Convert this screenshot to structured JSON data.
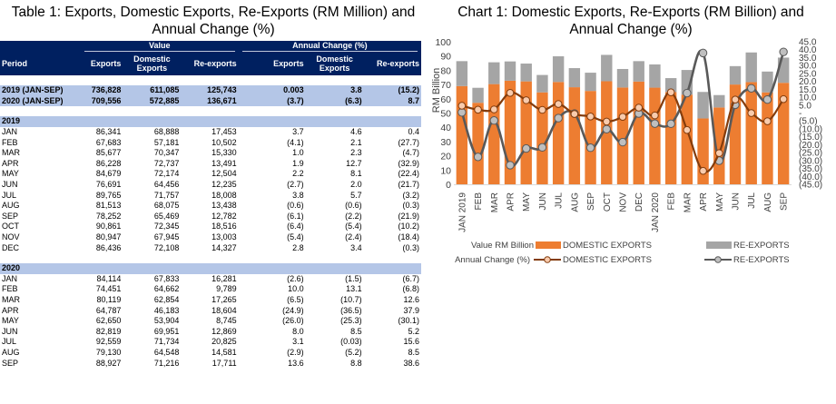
{
  "table": {
    "title": "Table 1: Exports, Domestic Exports, Re-Exports (RM Million)  and Annual  Change (%)",
    "group_headers": [
      "Value",
      "Annual Change (%)"
    ],
    "columns": [
      "Period",
      "Exports",
      "Domestic Exports",
      "Re-exports",
      "Exports",
      "Domestic Exports",
      "Re-exports"
    ],
    "summary_rows": [
      {
        "period": "2019 (JAN-SEP)",
        "exports": "736,828",
        "domestic": "611,085",
        "reexports": "125,743",
        "chg_exports": "0.003",
        "chg_domestic": "3.8",
        "chg_reexports": "(15.2)"
      },
      {
        "period": "2020 (JAN-SEP)",
        "exports": "709,556",
        "domestic": "572,885",
        "reexports": "136,671",
        "chg_exports": "(3.7)",
        "chg_domestic": "(6.3)",
        "chg_reexports": "8.7"
      }
    ],
    "years": [
      {
        "year": "2019",
        "rows": [
          {
            "period": "JAN",
            "exports": "86,341",
            "domestic": "68,888",
            "reexports": "17,453",
            "chg_exports": "3.7",
            "chg_domestic": "4.6",
            "chg_reexports": "0.4"
          },
          {
            "period": "FEB",
            "exports": "67,683",
            "domestic": "57,181",
            "reexports": "10,502",
            "chg_exports": "(4.1)",
            "chg_domestic": "2.1",
            "chg_reexports": "(27.7)"
          },
          {
            "period": "MAR",
            "exports": "85,677",
            "domestic": "70,347",
            "reexports": "15,330",
            "chg_exports": "1.0",
            "chg_domestic": "2.3",
            "chg_reexports": "(4.7)"
          },
          {
            "period": "APR",
            "exports": "86,228",
            "domestic": "72,737",
            "reexports": "13,491",
            "chg_exports": "1.9",
            "chg_domestic": "12.7",
            "chg_reexports": "(32.9)"
          },
          {
            "period": "MAY",
            "exports": "84,679",
            "domestic": "72,174",
            "reexports": "12,504",
            "chg_exports": "2.2",
            "chg_domestic": "8.1",
            "chg_reexports": "(22.4)"
          },
          {
            "period": "JUN",
            "exports": "76,691",
            "domestic": "64,456",
            "reexports": "12,235",
            "chg_exports": "(2.7)",
            "chg_domestic": "2.0",
            "chg_reexports": "(21.7)"
          },
          {
            "period": "JUL",
            "exports": "89,765",
            "domestic": "71,757",
            "reexports": "18,008",
            "chg_exports": "3.8",
            "chg_domestic": "5.7",
            "chg_reexports": "(3.2)"
          },
          {
            "period": "AUG",
            "exports": "81,513",
            "domestic": "68,075",
            "reexports": "13,438",
            "chg_exports": "(0.6)",
            "chg_domestic": "(0.6)",
            "chg_reexports": "(0.3)"
          },
          {
            "period": "SEP",
            "exports": "78,252",
            "domestic": "65,469",
            "reexports": "12,782",
            "chg_exports": "(6.1)",
            "chg_domestic": "(2.2)",
            "chg_reexports": "(21.9)"
          },
          {
            "period": "OCT",
            "exports": "90,861",
            "domestic": "72,345",
            "reexports": "18,516",
            "chg_exports": "(6.4)",
            "chg_domestic": "(5.4)",
            "chg_reexports": "(10.2)"
          },
          {
            "period": "NOV",
            "exports": "80,947",
            "domestic": "67,945",
            "reexports": "13,003",
            "chg_exports": "(5.4)",
            "chg_domestic": "(2.4)",
            "chg_reexports": "(18.4)"
          },
          {
            "period": "DEC",
            "exports": "86,436",
            "domestic": "72,108",
            "reexports": "14,327",
            "chg_exports": "2.8",
            "chg_domestic": "3.4",
            "chg_reexports": "(0.3)"
          }
        ]
      },
      {
        "year": "2020",
        "rows": [
          {
            "period": "JAN",
            "exports": "84,114",
            "domestic": "67,833",
            "reexports": "16,281",
            "chg_exports": "(2.6)",
            "chg_domestic": "(1.5)",
            "chg_reexports": "(6.7)"
          },
          {
            "period": "FEB",
            "exports": "74,451",
            "domestic": "64,662",
            "reexports": "9,789",
            "chg_exports": "10.0",
            "chg_domestic": "13.1",
            "chg_reexports": "(6.8)"
          },
          {
            "period": "MAR",
            "exports": "80,119",
            "domestic": "62,854",
            "reexports": "17,265",
            "chg_exports": "(6.5)",
            "chg_domestic": "(10.7)",
            "chg_reexports": "12.6"
          },
          {
            "period": "APR",
            "exports": "64,787",
            "domestic": "46,183",
            "reexports": "18,604",
            "chg_exports": "(24.9)",
            "chg_domestic": "(36.5)",
            "chg_reexports": "37.9"
          },
          {
            "period": "MAY",
            "exports": "62,650",
            "domestic": "53,904",
            "reexports": "8,745",
            "chg_exports": "(26.0)",
            "chg_domestic": "(25.3)",
            "chg_reexports": "(30.1)"
          },
          {
            "period": "JUN",
            "exports": "82,819",
            "domestic": "69,951",
            "reexports": "12,869",
            "chg_exports": "8.0",
            "chg_domestic": "8.5",
            "chg_reexports": "5.2"
          },
          {
            "period": "JUL",
            "exports": "92,559",
            "domestic": "71,734",
            "reexports": "20,825",
            "chg_exports": "3.1",
            "chg_domestic": "(0.03)",
            "chg_reexports": "15.6"
          },
          {
            "period": "AUG",
            "exports": "79,130",
            "domestic": "64,548",
            "reexports": "14,581",
            "chg_exports": "(2.9)",
            "chg_domestic": "(5.2)",
            "chg_reexports": "8.5"
          },
          {
            "period": "SEP",
            "exports": "88,927",
            "domestic": "71,216",
            "reexports": "17,711",
            "chg_exports": "13.6",
            "chg_domestic": "8.8",
            "chg_reexports": "38.6"
          }
        ]
      }
    ]
  },
  "chart_data": {
    "type": "bar",
    "title": "Chart 1: Domestic Exports, Re-Exports (RM Billion) and Annual  Change (%)",
    "ylabel": "RM Billion",
    "ylim": [
      0,
      100
    ],
    "yticks": [
      "0",
      "10",
      "20",
      "30",
      "40",
      "50",
      "60",
      "70",
      "80",
      "90",
      "100"
    ],
    "y2lim": [
      -45,
      45
    ],
    "y2ticks": [
      "45.0",
      "40.0",
      "35.0",
      "30.0",
      "25.0",
      "20.0",
      "15.0",
      "10.0",
      "5.0",
      "-",
      "(5.0)",
      "(10.0)",
      "(15.0)",
      "(20.0)",
      "(25.0)",
      "(30.0)",
      "(35.0)",
      "(40.0)",
      "(45.0)"
    ],
    "categories": [
      "JAN 2019",
      "FEB",
      "MAR",
      "APR",
      "MAY",
      "JUN",
      "JUL",
      "AUG",
      "SEP",
      "OCT",
      "NOV",
      "DEC",
      "JAN 2020",
      "FEB",
      "MAR",
      "APR",
      "MAY",
      "JUN",
      "JUL",
      "AUG",
      "SEP"
    ],
    "series": [
      {
        "name": "DOMESTIC EXPORTS",
        "kind": "stacked-bar",
        "axis": "left",
        "color": "#ed7d31",
        "values": [
          68.9,
          57.2,
          70.3,
          72.7,
          72.2,
          64.5,
          71.8,
          68.1,
          65.5,
          72.3,
          67.9,
          72.1,
          67.8,
          64.7,
          62.9,
          46.2,
          53.9,
          70.0,
          71.7,
          64.5,
          71.2
        ]
      },
      {
        "name": "RE-EXPORTS",
        "kind": "stacked-bar",
        "axis": "left",
        "color": "#a5a5a5",
        "values": [
          17.5,
          10.5,
          15.3,
          13.5,
          12.5,
          12.2,
          18.0,
          13.4,
          12.8,
          18.5,
          13.0,
          14.3,
          16.3,
          9.8,
          17.3,
          18.6,
          8.7,
          12.9,
          20.8,
          14.6,
          17.7
        ]
      },
      {
        "name": "DOMESTIC EXPORTS",
        "kind": "line",
        "axis": "right",
        "color": "#843c0c",
        "marker_color": "#f8cbad",
        "values": [
          4.6,
          2.1,
          2.3,
          12.7,
          8.1,
          2.0,
          5.7,
          -0.6,
          -2.2,
          -5.4,
          -2.4,
          3.4,
          -1.5,
          13.1,
          -10.7,
          -36.5,
          -25.3,
          8.5,
          -0.03,
          -5.2,
          8.8
        ]
      },
      {
        "name": "RE-EXPORTS",
        "kind": "line",
        "axis": "right",
        "color": "#595959",
        "marker_color": "#bfbfbf",
        "values": [
          0.4,
          -27.7,
          -4.7,
          -32.9,
          -22.4,
          -21.7,
          -3.2,
          -0.3,
          -21.9,
          -10.2,
          -18.4,
          -0.3,
          -6.7,
          -6.8,
          12.6,
          37.9,
          -30.1,
          5.2,
          15.6,
          8.5,
          38.6
        ]
      }
    ],
    "legend": {
      "row1_label": "Value RM  Billion",
      "row2_label": "Annual Change  (%)",
      "items": [
        "DOMESTIC EXPORTS",
        "RE-EXPORTS",
        "DOMESTIC EXPORTS",
        "RE-EXPORTS"
      ],
      "position": "bottom"
    }
  }
}
